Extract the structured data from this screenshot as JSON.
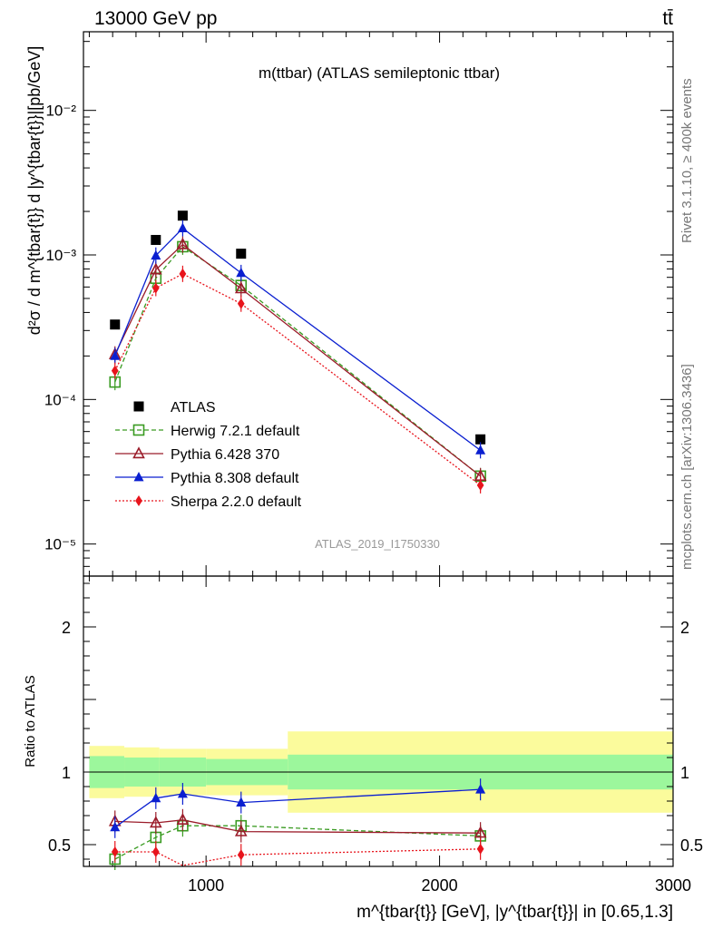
{
  "header": {
    "left": "13000 GeV pp",
    "right": "tt̄"
  },
  "side_labels": {
    "rivet": "Rivet 3.1.10, ≥ 400k events",
    "mcplots": "mcplots.cern.ch [arXiv:1306.3436]"
  },
  "chart_data": {
    "type": "line",
    "title": "m(ttbar) (ATLAS semileptonic ttbar)",
    "watermark": "ATLAS_2019_I1750330",
    "ylabel_main": "d²σ / d m^{tbar{t}} d |y^{tbar{t}}|[pb/GeV]",
    "ylabel_ratio": "Ratio to ATLAS",
    "xlabel": "m^{tbar{t}} [GeV], |y^{tbar{t}}| in [0.65,1.3]",
    "x_range": [
      475,
      3000
    ],
    "y_range_main": [
      6e-06,
      0.035
    ],
    "y_range_ratio": [
      0.35,
      2.35
    ],
    "y_scale_main": "log",
    "x_ticks": [
      "1000",
      "2000",
      "3000"
    ],
    "y_ticks_main": [
      "10⁻⁵",
      "10⁻⁴",
      "10⁻³",
      "10⁻²"
    ],
    "y_ticks_ratio": [
      "0.5",
      "1",
      "2"
    ],
    "legend_position": "bottom-left",
    "x": [
      610,
      785,
      900,
      1150,
      2175
    ],
    "series": [
      {
        "name": "ATLAS",
        "color": "#000000",
        "marker": "square-filled",
        "values": [
          0.00033,
          0.00127,
          0.00187,
          0.00102,
          5.3e-05
        ],
        "ratio": [
          1,
          1,
          1,
          1,
          1
        ]
      },
      {
        "name": "Herwig 7.2.1 default",
        "color": "#3a9b22",
        "marker": "square-open",
        "dash": "dashed",
        "values": [
          0.000132,
          0.00069,
          0.00114,
          0.000615,
          2.95e-05
        ],
        "ratio": [
          0.4,
          0.55,
          0.63,
          0.63,
          0.56
        ]
      },
      {
        "name": "Pythia 6.428 370",
        "color": "#9b1c2a",
        "marker": "triangle-open",
        "dash": "solid",
        "values": [
          0.000205,
          0.00079,
          0.00118,
          0.000585,
          2.95e-05
        ],
        "ratio": [
          0.66,
          0.65,
          0.67,
          0.59,
          0.58
        ]
      },
      {
        "name": "Pythia 8.308 default",
        "color": "#0a1fd0",
        "marker": "triangle-filled",
        "dash": "solid",
        "values": [
          0.0002,
          0.00099,
          0.00153,
          0.00075,
          4.45e-05
        ],
        "ratio": [
          0.62,
          0.82,
          0.85,
          0.79,
          0.88
        ]
      },
      {
        "name": "Sherpa 2.2.0 default",
        "color": "#e8141c",
        "marker": "diamond-filled",
        "dash": "dotted",
        "values": [
          0.000158,
          0.00059,
          0.00074,
          0.00046,
          2.55e-05
        ],
        "ratio": [
          0.45,
          0.45,
          0.34,
          0.43,
          0.47
        ]
      }
    ],
    "uncertainty_bands": {
      "bins": [
        [
          500,
          650
        ],
        [
          650,
          800
        ],
        [
          800,
          1000
        ],
        [
          1000,
          1350
        ],
        [
          1350,
          3000
        ]
      ],
      "stat_half_width": [
        0.11,
        0.1,
        0.1,
        0.09,
        0.12
      ],
      "total_half_width": [
        0.18,
        0.17,
        0.16,
        0.16,
        0.28
      ],
      "stat_color": "#9cf79c",
      "total_color": "#fbfb9c"
    }
  }
}
